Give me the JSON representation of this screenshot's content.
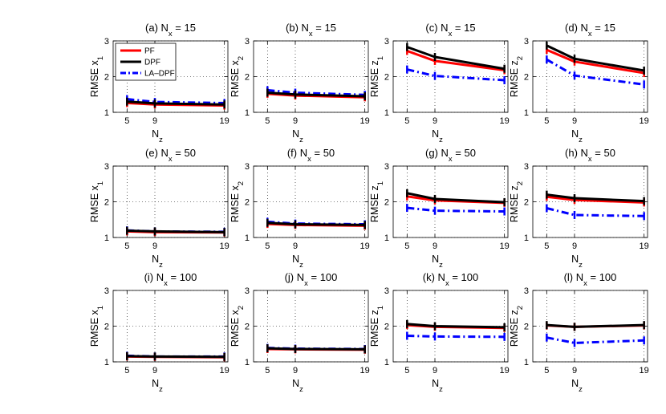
{
  "chart_data": {
    "type": "line",
    "x": [
      5,
      9,
      19
    ],
    "xlabel_main": "N",
    "xlabel_sub": "z",
    "ylim": [
      1,
      3
    ],
    "yticks": [
      1,
      2,
      3
    ],
    "xticks": [
      5,
      9,
      19
    ],
    "grid": "dotted",
    "legend": {
      "position": "top-left of panel (a)",
      "entries": [
        {
          "name": "PF",
          "color": "#ff0000",
          "style": "solid"
        },
        {
          "name": "DPF",
          "color": "#000000",
          "style": "solid"
        },
        {
          "name": "LA–DPF",
          "color": "#0000ff",
          "style": "dash-dot"
        }
      ]
    },
    "panels": [
      {
        "title": "(a) N",
        "title_sub": "x",
        "title_tail": " = 15",
        "ylabel": "RMSE x",
        "ylabel_sub": "1",
        "series": [
          {
            "name": "PF",
            "values": [
              1.26,
              1.22,
              1.19
            ]
          },
          {
            "name": "DPF",
            "values": [
              1.3,
              1.25,
              1.22
            ]
          },
          {
            "name": "LA–DPF",
            "values": [
              1.37,
              1.29,
              1.26
            ]
          }
        ]
      },
      {
        "title": "(b) N",
        "title_sub": "x",
        "title_tail": " = 15",
        "ylabel": "RMSE x",
        "ylabel_sub": "2",
        "series": [
          {
            "name": "PF",
            "values": [
              1.52,
              1.47,
              1.42
            ]
          },
          {
            "name": "DPF",
            "values": [
              1.55,
              1.5,
              1.45
            ]
          },
          {
            "name": "LA–DPF",
            "values": [
              1.62,
              1.55,
              1.49
            ]
          }
        ]
      },
      {
        "title": "(c) N",
        "title_sub": "x",
        "title_tail": " = 15",
        "ylabel": "RMSE z",
        "ylabel_sub": "1",
        "series": [
          {
            "name": "PF",
            "values": [
              2.72,
              2.44,
              2.18
            ]
          },
          {
            "name": "DPF",
            "values": [
              2.83,
              2.55,
              2.22
            ]
          },
          {
            "name": "LA–DPF",
            "values": [
              2.2,
              2.02,
              1.9
            ]
          }
        ]
      },
      {
        "title": "(d) N",
        "title_sub": "x",
        "title_tail": " = 15",
        "ylabel": "RMSE z",
        "ylabel_sub": "2",
        "series": [
          {
            "name": "PF",
            "values": [
              2.75,
              2.42,
              2.1
            ]
          },
          {
            "name": "DPF",
            "values": [
              2.87,
              2.5,
              2.17
            ]
          },
          {
            "name": "LA–DPF",
            "values": [
              2.48,
              2.03,
              1.78
            ]
          }
        ]
      },
      {
        "title": "(e) N",
        "title_sub": "x",
        "title_tail": " = 50",
        "ylabel": "RMSE x",
        "ylabel_sub": "1",
        "series": [
          {
            "name": "PF",
            "values": [
              1.17,
              1.15,
              1.14
            ]
          },
          {
            "name": "DPF",
            "values": [
              1.19,
              1.17,
              1.15
            ]
          },
          {
            "name": "LA–DPF",
            "values": [
              1.2,
              1.17,
              1.16
            ]
          }
        ]
      },
      {
        "title": "(f) N",
        "title_sub": "x",
        "title_tail": " = 50",
        "ylabel": "RMSE x",
        "ylabel_sub": "2",
        "series": [
          {
            "name": "PF",
            "values": [
              1.38,
              1.35,
              1.33
            ]
          },
          {
            "name": "DPF",
            "values": [
              1.41,
              1.37,
              1.35
            ]
          },
          {
            "name": "LA–DPF",
            "values": [
              1.44,
              1.39,
              1.37
            ]
          }
        ]
      },
      {
        "title": "(g) N",
        "title_sub": "x",
        "title_tail": " = 50",
        "ylabel": "RMSE z",
        "ylabel_sub": "1",
        "series": [
          {
            "name": "PF",
            "values": [
              2.15,
              2.04,
              1.97
            ]
          },
          {
            "name": "DPF",
            "values": [
              2.24,
              2.08,
              1.99
            ]
          },
          {
            "name": "LA–DPF",
            "values": [
              1.83,
              1.75,
              1.73
            ]
          }
        ]
      },
      {
        "title": "(h) N",
        "title_sub": "x",
        "title_tail": " = 50",
        "ylabel": "RMSE z",
        "ylabel_sub": "2",
        "series": [
          {
            "name": "PF",
            "values": [
              2.14,
              2.05,
              1.98
            ]
          },
          {
            "name": "DPF",
            "values": [
              2.2,
              2.1,
              2.02
            ]
          },
          {
            "name": "LA–DPF",
            "values": [
              1.82,
              1.63,
              1.6
            ]
          }
        ]
      },
      {
        "title": "(i) N",
        "title_sub": "x",
        "title_tail": " = 100",
        "ylabel": "RMSE x",
        "ylabel_sub": "1",
        "series": [
          {
            "name": "PF",
            "values": [
              1.15,
              1.14,
              1.13
            ]
          },
          {
            "name": "DPF",
            "values": [
              1.16,
              1.15,
              1.14
            ]
          },
          {
            "name": "LA–DPF",
            "values": [
              1.17,
              1.15,
              1.15
            ]
          }
        ]
      },
      {
        "title": "(j) N",
        "title_sub": "x",
        "title_tail": " = 100",
        "ylabel": "RMSE x",
        "ylabel_sub": "2",
        "series": [
          {
            "name": "PF",
            "values": [
              1.36,
              1.35,
              1.34
            ]
          },
          {
            "name": "DPF",
            "values": [
              1.38,
              1.36,
              1.35
            ]
          },
          {
            "name": "LA–DPF",
            "values": [
              1.39,
              1.37,
              1.36
            ]
          }
        ]
      },
      {
        "title": "(k) N",
        "title_sub": "x",
        "title_tail": " = 100",
        "ylabel": "RMSE z",
        "ylabel_sub": "1",
        "series": [
          {
            "name": "PF",
            "values": [
              2.03,
              1.98,
              1.95
            ]
          },
          {
            "name": "DPF",
            "values": [
              2.06,
              2.0,
              1.97
            ]
          },
          {
            "name": "LA–DPF",
            "values": [
              1.73,
              1.71,
              1.7
            ]
          }
        ]
      },
      {
        "title": "(l) N",
        "title_sub": "x",
        "title_tail": " = 100",
        "ylabel": "RMSE z",
        "ylabel_sub": "2",
        "series": [
          {
            "name": "PF",
            "values": [
              2.02,
              1.98,
              2.02
            ]
          },
          {
            "name": "DPF",
            "values": [
              2.03,
              1.98,
              2.03
            ]
          },
          {
            "name": "LA–DPF",
            "values": [
              1.68,
              1.53,
              1.6
            ]
          }
        ]
      }
    ]
  }
}
